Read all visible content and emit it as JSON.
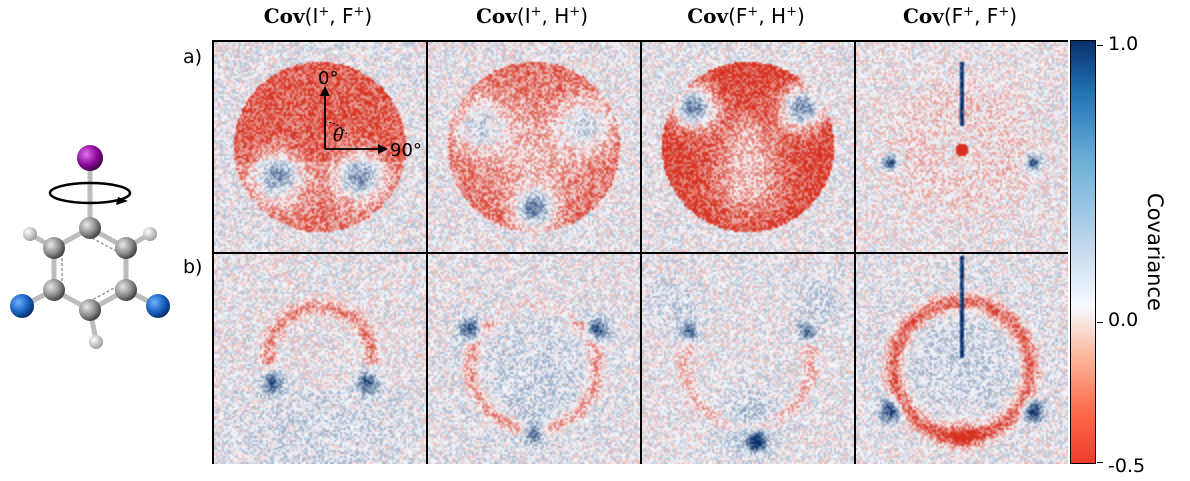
{
  "columns": [
    {
      "cov": "Cov",
      "ion1": "I",
      "ion2": "F"
    },
    {
      "cov": "Cov",
      "ion1": "I",
      "ion2": "H"
    },
    {
      "cov": "Cov",
      "ion1": "F",
      "ion2": "H"
    },
    {
      "cov": "Cov",
      "ion1": "F",
      "ion2": "F"
    }
  ],
  "charge": "+",
  "rows": [
    "a)",
    "b)"
  ],
  "angle_labels": {
    "zero": "0°",
    "ninety": "90°",
    "theta": "θ"
  },
  "colorbar": {
    "label": "Covariance",
    "ticks": [
      "1.0",
      "0.0",
      "-0.5"
    ],
    "range": [
      -0.5,
      1.0
    ]
  },
  "colors": {
    "positive": "#08306b",
    "negative": "#d7301f",
    "iodine": "#8b0a99",
    "fluorine": "#1560bd",
    "carbon": "#808080",
    "hydrogen": "#cccccc"
  }
}
